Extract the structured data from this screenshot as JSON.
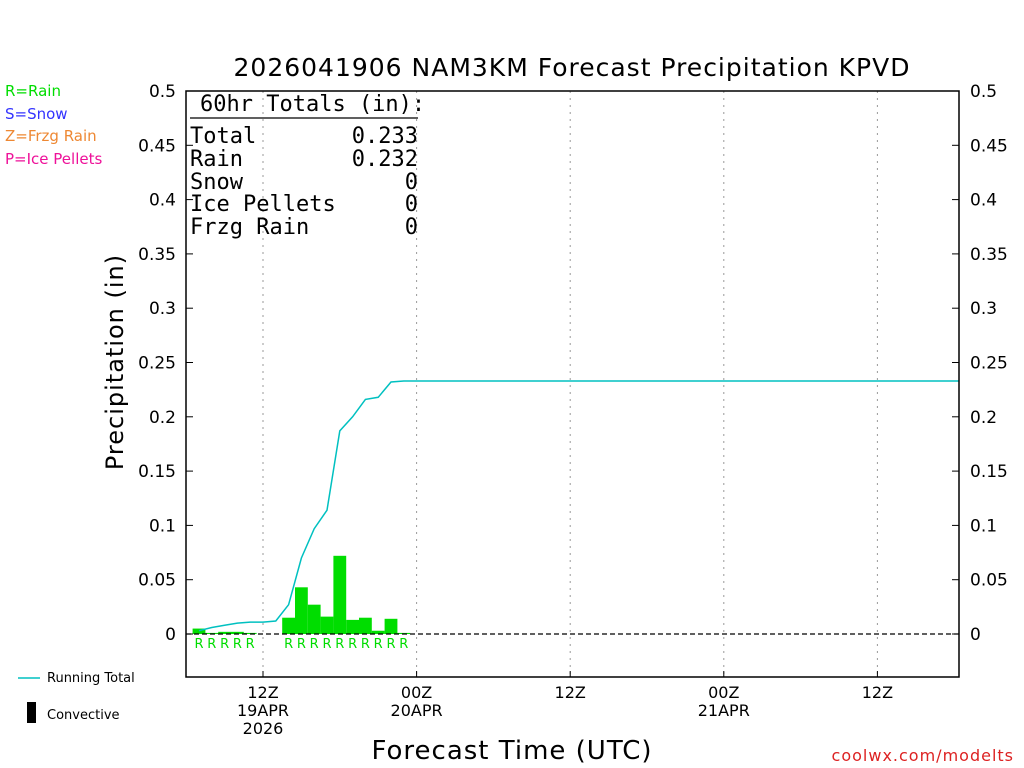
{
  "chart_data": {
    "type": "bar",
    "title": "2026041906 NAM3KM Forecast Precipitation KPVD",
    "ylabel": "Precipitation (in)",
    "xlabel": "Forecast Time (UTC)",
    "ylim": [
      -0.04,
      0.5
    ],
    "xlim_hours": [
      1,
      61
    ],
    "y_ticks": [
      "0",
      "0.05",
      "0.1",
      "0.15",
      "0.2",
      "0.25",
      "0.3",
      "0.35",
      "0.4",
      "0.45",
      "0.5"
    ],
    "x_ticks": [
      {
        "hour": 6,
        "lines": [
          "12Z",
          "19APR",
          "2026"
        ]
      },
      {
        "hour": 18,
        "lines": [
          "00Z",
          "20APR"
        ]
      },
      {
        "hour": 30,
        "lines": [
          "12Z"
        ]
      },
      {
        "hour": 42,
        "lines": [
          "00Z",
          "21APR"
        ]
      },
      {
        "hour": 54,
        "lines": [
          "12Z"
        ]
      }
    ],
    "series": [
      {
        "name": "Hourly Precipitation (Rain)",
        "type": "bar",
        "color": "#00dd00",
        "hours": [
          1,
          2,
          3,
          4,
          5,
          8,
          9,
          10,
          11,
          12,
          13,
          14,
          15,
          16,
          17
        ],
        "values": [
          0.005,
          0.001,
          0.002,
          0.002,
          0.001,
          0.015,
          0.043,
          0.027,
          0.016,
          0.072,
          0.013,
          0.015,
          0.003,
          0.014,
          0.001
        ]
      },
      {
        "name": "Running Total",
        "type": "line",
        "color": "#00c0c0",
        "hours": [
          1,
          2,
          3,
          4,
          5,
          6,
          7,
          8,
          9,
          10,
          11,
          12,
          13,
          14,
          15,
          16,
          17,
          61
        ],
        "values": [
          0.003,
          0.006,
          0.008,
          0.01,
          0.011,
          0.011,
          0.012,
          0.027,
          0.07,
          0.097,
          0.114,
          0.187,
          0.2,
          0.216,
          0.218,
          0.232,
          0.233,
          0.233
        ]
      }
    ],
    "precip_type_labels": {
      "hours": [
        1,
        2,
        3,
        4,
        5,
        8,
        9,
        10,
        11,
        12,
        13,
        14,
        15,
        16,
        17
      ],
      "labels": [
        "R",
        "R",
        "R",
        "R",
        "R",
        "R",
        "R",
        "R",
        "R",
        "R",
        "R",
        "R",
        "R",
        "R",
        "R"
      ]
    },
    "totals_box": {
      "heading": "60hr Totals (in):",
      "rows": [
        {
          "label": "Total",
          "value": "0.233"
        },
        {
          "label": "Rain",
          "value": "0.232"
        },
        {
          "label": "Snow",
          "value": "0"
        },
        {
          "label": "Ice Pellets",
          "value": "0"
        },
        {
          "label": "Frzg Rain",
          "value": "0"
        }
      ]
    },
    "type_legend": [
      {
        "text": "R=Rain",
        "color": "#00dd00"
      },
      {
        "text": "S=Snow",
        "color": "#3333ff"
      },
      {
        "text": "Z=Frzg Rain",
        "color": "#ee8833"
      },
      {
        "text": "P=Ice Pellets",
        "color": "#ee1199"
      }
    ],
    "bottom_legend": [
      {
        "text": "Running Total",
        "color": "#00c0c0"
      },
      {
        "text": "Convective",
        "color": "#000000"
      }
    ],
    "credit": "coolwx.com/modelts",
    "credit_color": "#dd2222"
  }
}
